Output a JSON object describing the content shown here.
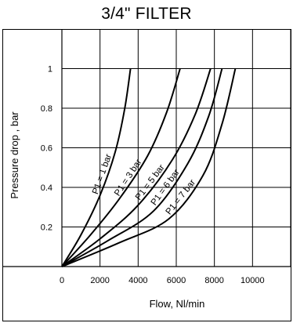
{
  "chart_data": {
    "type": "line",
    "title": "3/4\" FILTER",
    "xlabel": "Flow, Nl/min",
    "ylabel": "Pressure drop , bar",
    "xlim": [
      0,
      12000
    ],
    "ylim": [
      0,
      1.2
    ],
    "x_ticks": [
      0,
      2000,
      4000,
      6000,
      8000,
      10000
    ],
    "x_tick_labels": [
      "0",
      "2000",
      "4000",
      "6000",
      "8000",
      "10000"
    ],
    "y_ticks": [
      0.2,
      0.4,
      0.6,
      0.8,
      1
    ],
    "y_tick_labels": [
      "0.2",
      "0.4",
      "0.6",
      "0.8",
      "1"
    ],
    "grid": true,
    "series": [
      {
        "name": "P1 = 1 bar",
        "x": [
          0,
          1000,
          2000,
          2800,
          3300,
          3600
        ],
        "y": [
          0,
          0.16,
          0.36,
          0.58,
          0.8,
          1.0
        ]
      },
      {
        "name": "P1 = 3 bar",
        "x": [
          0,
          1500,
          3000,
          4500,
          5500,
          6200
        ],
        "y": [
          0,
          0.16,
          0.34,
          0.56,
          0.78,
          1.0
        ]
      },
      {
        "name": "P1 = 5 bar",
        "x": [
          0,
          2000,
          4000,
          5800,
          7000,
          7800
        ],
        "y": [
          0,
          0.14,
          0.31,
          0.54,
          0.77,
          1.0
        ]
      },
      {
        "name": "P1 = 6 bar",
        "x": [
          0,
          2400,
          4800,
          6600,
          7700,
          8400
        ],
        "y": [
          0,
          0.13,
          0.28,
          0.52,
          0.76,
          1.0
        ]
      },
      {
        "name": "P1 = 7 bar",
        "x": [
          0,
          3000,
          5600,
          7400,
          8400,
          9100
        ],
        "y": [
          0,
          0.12,
          0.24,
          0.46,
          0.72,
          1.0
        ]
      }
    ]
  }
}
